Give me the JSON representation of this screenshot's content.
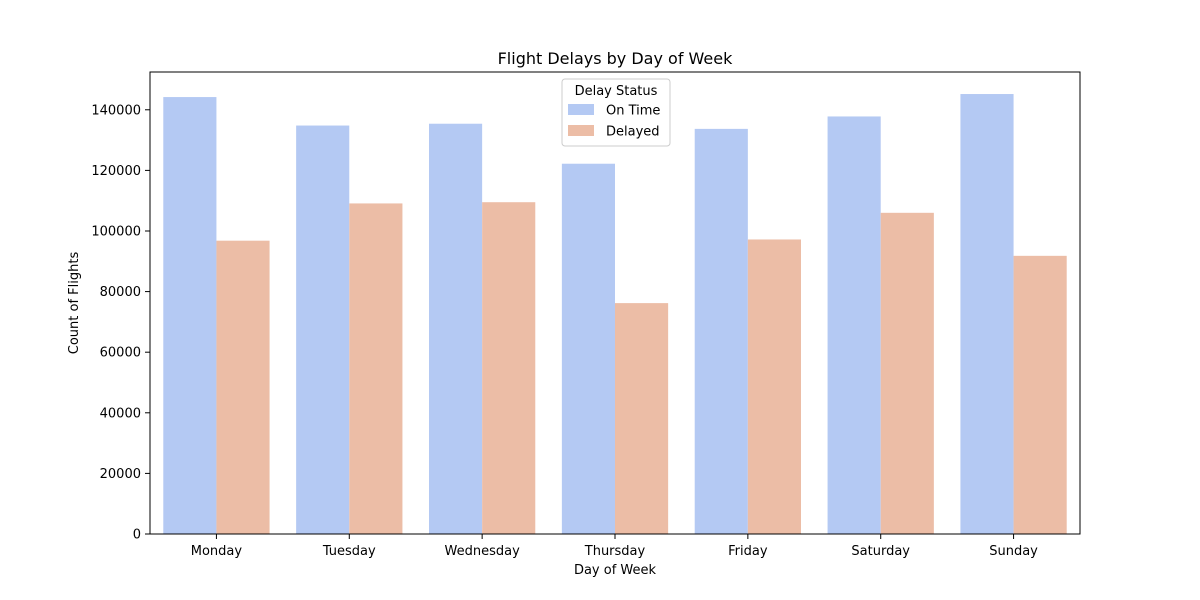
{
  "chart_data": {
    "type": "bar",
    "title": "Flight Delays by Day of Week",
    "xlabel": "Day of Week",
    "ylabel": "Count of Flights",
    "categories": [
      "Monday",
      "Tuesday",
      "Wednesday",
      "Thursday",
      "Friday",
      "Saturday",
      "Sunday"
    ],
    "series": [
      {
        "name": "On Time",
        "color": "#b4c9f3",
        "values": [
          144200,
          134800,
          135400,
          122200,
          133700,
          137800,
          145200
        ]
      },
      {
        "name": "Delayed",
        "color": "#ecbda6",
        "values": [
          96800,
          109100,
          109500,
          76200,
          97200,
          106000,
          91800
        ]
      }
    ],
    "yticks": [
      0,
      20000,
      40000,
      60000,
      80000,
      100000,
      120000,
      140000
    ],
    "ylim": [
      0,
      152470
    ],
    "grid": false,
    "legend": {
      "title": "Delay Status",
      "position": "top-center"
    }
  }
}
